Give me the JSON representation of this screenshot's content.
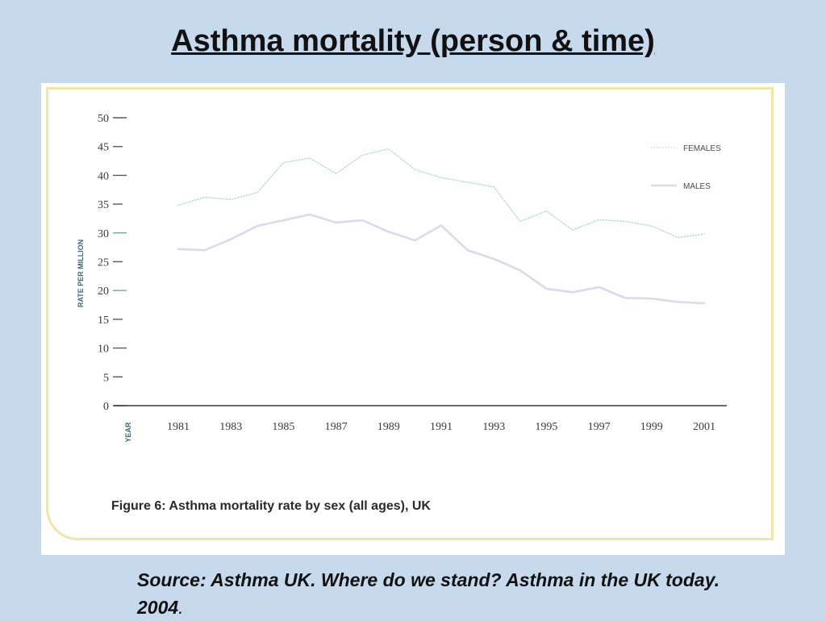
{
  "slide": {
    "title": "Asthma mortality (person & time)",
    "source_line": "Source: Asthma UK.  Where do we stand? Asthma in the UK today. 2004",
    "source_end": "."
  },
  "chart_data": {
    "type": "line",
    "title": "",
    "caption": "Figure 6: Asthma mortality rate by sex (all ages), UK",
    "xlabel": "YEAR",
    "ylabel": "RATE PER MILLION",
    "ylim": [
      0,
      50
    ],
    "yticks": [
      0,
      5,
      10,
      15,
      20,
      25,
      30,
      35,
      40,
      45,
      50
    ],
    "xticks": [
      "1981",
      "1983",
      "1985",
      "1987",
      "1989",
      "1991",
      "1993",
      "1995",
      "1997",
      "1999",
      "2001"
    ],
    "x": [
      1981,
      1982,
      1983,
      1984,
      1985,
      1986,
      1987,
      1988,
      1989,
      1990,
      1991,
      1992,
      1993,
      1994,
      1995,
      1996,
      1997,
      1998,
      1999,
      2000,
      2001
    ],
    "grid": false,
    "legend_position": "top-right",
    "series": [
      {
        "name": "FEMALES",
        "style": "dotted",
        "color": "#b9dcdc",
        "values": [
          34.8,
          36.2,
          35.8,
          37.0,
          42.2,
          43.0,
          40.3,
          43.5,
          44.6,
          41.0,
          39.6,
          38.8,
          38.0,
          32.0,
          33.8,
          30.5,
          32.3,
          32.0,
          31.2,
          29.2,
          29.8
        ]
      },
      {
        "name": "MALES",
        "style": "solid",
        "color": "#ddd8ee",
        "values": [
          27.2,
          27.0,
          28.9,
          31.2,
          32.2,
          33.2,
          31.8,
          32.2,
          30.2,
          28.7,
          31.3,
          27.0,
          25.5,
          23.5,
          20.3,
          19.7,
          20.6,
          18.7,
          18.6,
          18.0,
          17.8
        ]
      }
    ]
  }
}
